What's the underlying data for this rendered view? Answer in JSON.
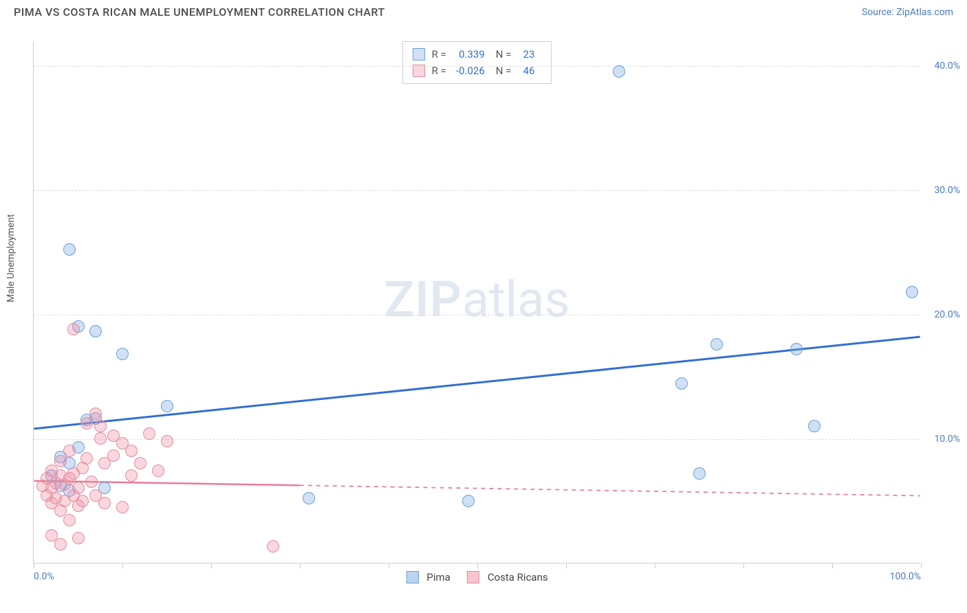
{
  "title": "PIMA VS COSTA RICAN MALE UNEMPLOYMENT CORRELATION CHART",
  "source": "Source: ZipAtlas.com",
  "ylabel": "Male Unemployment",
  "watermark_bold": "ZIP",
  "watermark_light": "atlas",
  "chart": {
    "xlim": [
      0,
      100
    ],
    "ylim": [
      0,
      42
    ],
    "y_ticks": [
      {
        "v": 10,
        "label": "10.0%"
      },
      {
        "v": 20,
        "label": "20.0%"
      },
      {
        "v": 30,
        "label": "30.0%"
      },
      {
        "v": 40,
        "label": "40.0%"
      }
    ],
    "x_tick_positions": [
      0,
      10,
      20,
      30,
      40,
      50,
      60,
      70,
      80,
      90,
      100
    ],
    "x_labels": [
      {
        "v": 0,
        "label": "0.0%"
      },
      {
        "v": 100,
        "label": "100.0%"
      }
    ],
    "grid_color": "#dddddd",
    "marker_radius": 9,
    "series": [
      {
        "name": "Pima",
        "fill": "rgba(120,170,230,0.35)",
        "stroke": "#6a9fd8",
        "R": "0.339",
        "N": "23",
        "trend": {
          "x1": 0,
          "y1": 10.8,
          "x2": 100,
          "y2": 18.2,
          "color": "#326fd1",
          "width": 3,
          "dash": "",
          "solid_until": 100
        },
        "points": [
          {
            "x": 4,
            "y": 25.2
          },
          {
            "x": 5,
            "y": 19.0
          },
          {
            "x": 7,
            "y": 18.6
          },
          {
            "x": 10,
            "y": 16.8
          },
          {
            "x": 15,
            "y": 12.6
          },
          {
            "x": 3,
            "y": 8.5
          },
          {
            "x": 4,
            "y": 8.0
          },
          {
            "x": 5,
            "y": 9.3
          },
          {
            "x": 6,
            "y": 11.5
          },
          {
            "x": 7,
            "y": 11.6
          },
          {
            "x": 8,
            "y": 6.0
          },
          {
            "x": 2,
            "y": 7.0
          },
          {
            "x": 3,
            "y": 6.2
          },
          {
            "x": 4,
            "y": 5.8
          },
          {
            "x": 31,
            "y": 5.2
          },
          {
            "x": 49,
            "y": 5.0
          },
          {
            "x": 66,
            "y": 39.5
          },
          {
            "x": 77,
            "y": 17.6
          },
          {
            "x": 73,
            "y": 14.4
          },
          {
            "x": 75,
            "y": 7.2
          },
          {
            "x": 86,
            "y": 17.2
          },
          {
            "x": 88,
            "y": 11.0
          },
          {
            "x": 99,
            "y": 21.8
          }
        ]
      },
      {
        "name": "Costa Ricans",
        "fill": "rgba(240,140,160,0.35)",
        "stroke": "#e38aa0",
        "R": "-0.026",
        "N": "46",
        "trend": {
          "x1": 0,
          "y1": 6.6,
          "x2": 100,
          "y2": 5.4,
          "color": "#e87a9a",
          "width": 2.5,
          "dash": "6,6",
          "solid_until": 30
        },
        "points": [
          {
            "x": 1,
            "y": 6.2
          },
          {
            "x": 1.5,
            "y": 6.8
          },
          {
            "x": 2,
            "y": 6.0
          },
          {
            "x": 2,
            "y": 7.4
          },
          {
            "x": 2.5,
            "y": 6.4
          },
          {
            "x": 2.5,
            "y": 5.2
          },
          {
            "x": 3,
            "y": 7.0
          },
          {
            "x": 3,
            "y": 8.2
          },
          {
            "x": 3.5,
            "y": 6.3
          },
          {
            "x": 3.5,
            "y": 5.0
          },
          {
            "x": 4,
            "y": 6.8
          },
          {
            "x": 4,
            "y": 9.0
          },
          {
            "x": 4.5,
            "y": 5.4
          },
          {
            "x": 4.5,
            "y": 7.2
          },
          {
            "x": 5,
            "y": 4.6
          },
          {
            "x": 5,
            "y": 6.0
          },
          {
            "x": 5.5,
            "y": 7.6
          },
          {
            "x": 5.5,
            "y": 5.0
          },
          {
            "x": 6,
            "y": 8.4
          },
          {
            "x": 6,
            "y": 11.2
          },
          {
            "x": 6.5,
            "y": 6.5
          },
          {
            "x": 7,
            "y": 12.0
          },
          {
            "x": 7,
            "y": 5.4
          },
          {
            "x": 7.5,
            "y": 10.0
          },
          {
            "x": 7.5,
            "y": 11.0
          },
          {
            "x": 8,
            "y": 4.8
          },
          {
            "x": 8,
            "y": 8.0
          },
          {
            "x": 9,
            "y": 10.2
          },
          {
            "x": 9,
            "y": 8.6
          },
          {
            "x": 10,
            "y": 4.5
          },
          {
            "x": 10,
            "y": 9.6
          },
          {
            "x": 11,
            "y": 9.0
          },
          {
            "x": 11,
            "y": 7.0
          },
          {
            "x": 12,
            "y": 8.0
          },
          {
            "x": 13,
            "y": 10.4
          },
          {
            "x": 14,
            "y": 7.4
          },
          {
            "x": 15,
            "y": 9.8
          },
          {
            "x": 2,
            "y": 2.2
          },
          {
            "x": 3,
            "y": 1.5
          },
          {
            "x": 4,
            "y": 3.4
          },
          {
            "x": 5,
            "y": 2.0
          },
          {
            "x": 3,
            "y": 4.2
          },
          {
            "x": 4.5,
            "y": 18.8
          },
          {
            "x": 27,
            "y": 1.3
          },
          {
            "x": 2,
            "y": 4.8
          },
          {
            "x": 1.5,
            "y": 5.4
          }
        ]
      }
    ]
  },
  "legend_bottom": [
    {
      "label": "Pima",
      "fill": "rgba(120,170,230,0.5)",
      "stroke": "#6a9fd8"
    },
    {
      "label": "Costa Ricans",
      "fill": "rgba(240,140,160,0.5)",
      "stroke": "#e38aa0"
    }
  ],
  "legend_labels": {
    "r": "R =",
    "n": "N ="
  }
}
